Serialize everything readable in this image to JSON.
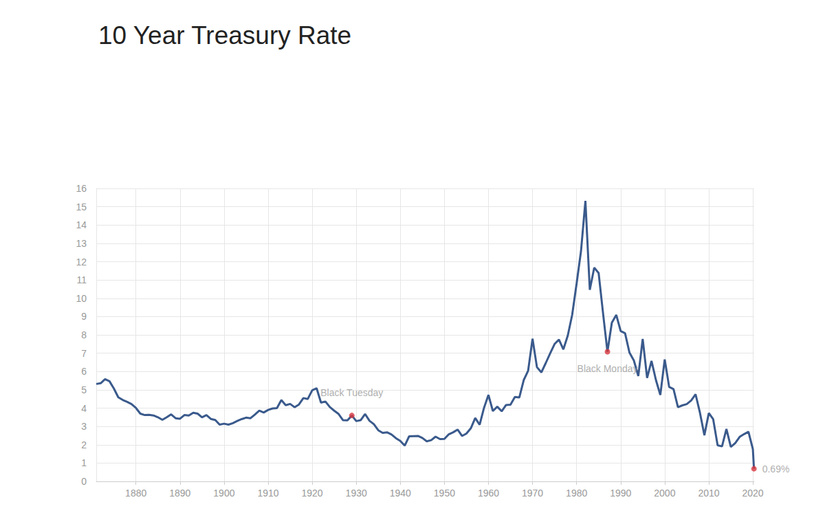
{
  "chart_data": {
    "type": "line",
    "title": "10 Year Treasury Rate",
    "color": "#3a5a8c",
    "grid": true,
    "x": [
      1871,
      1872,
      1873,
      1874,
      1875,
      1876,
      1877,
      1878,
      1879,
      1880,
      1881,
      1882,
      1883,
      1884,
      1885,
      1886,
      1887,
      1888,
      1889,
      1890,
      1891,
      1892,
      1893,
      1894,
      1895,
      1896,
      1897,
      1898,
      1899,
      1900,
      1901,
      1902,
      1903,
      1904,
      1905,
      1906,
      1907,
      1908,
      1909,
      1910,
      1911,
      1912,
      1913,
      1914,
      1915,
      1916,
      1917,
      1918,
      1919,
      1920,
      1921,
      1922,
      1923,
      1924,
      1925,
      1926,
      1927,
      1928,
      1929,
      1930,
      1931,
      1932,
      1933,
      1934,
      1935,
      1936,
      1937,
      1938,
      1939,
      1940,
      1941,
      1942,
      1943,
      1944,
      1945,
      1946,
      1947,
      1948,
      1949,
      1950,
      1951,
      1952,
      1953,
      1954,
      1955,
      1956,
      1957,
      1958,
      1959,
      1960,
      1961,
      1962,
      1963,
      1964,
      1965,
      1966,
      1967,
      1968,
      1969,
      1970,
      1971,
      1972,
      1973,
      1974,
      1975,
      1976,
      1977,
      1978,
      1979,
      1980,
      1981,
      1982,
      1983,
      1984,
      1985,
      1986,
      1987,
      1988,
      1989,
      1990,
      1991,
      1992,
      1993,
      1994,
      1995,
      1996,
      1997,
      1998,
      1999,
      2000,
      2001,
      2002,
      2003,
      2004,
      2005,
      2006,
      2007,
      2008,
      2009,
      2010,
      2011,
      2012,
      2013,
      2014,
      2015,
      2016,
      2017,
      2018,
      2019,
      2020,
      2020.25
    ],
    "values": [
      5.32,
      5.36,
      5.58,
      5.47,
      5.07,
      4.59,
      4.45,
      4.34,
      4.22,
      4.01,
      3.7,
      3.62,
      3.63,
      3.6,
      3.5,
      3.36,
      3.5,
      3.66,
      3.45,
      3.42,
      3.62,
      3.6,
      3.75,
      3.7,
      3.5,
      3.62,
      3.41,
      3.35,
      3.1,
      3.15,
      3.1,
      3.18,
      3.3,
      3.4,
      3.48,
      3.45,
      3.65,
      3.86,
      3.76,
      3.9,
      3.98,
      4.0,
      4.44,
      4.16,
      4.23,
      4.05,
      4.2,
      4.55,
      4.5,
      4.97,
      5.09,
      4.3,
      4.36,
      4.06,
      3.86,
      3.68,
      3.34,
      3.33,
      3.6,
      3.29,
      3.34,
      3.68,
      3.31,
      3.12,
      2.79,
      2.65,
      2.68,
      2.56,
      2.36,
      2.21,
      1.95,
      2.46,
      2.47,
      2.48,
      2.37,
      2.19,
      2.25,
      2.44,
      2.31,
      2.32,
      2.57,
      2.68,
      2.83,
      2.48,
      2.61,
      2.9,
      3.46,
      3.09,
      4.02,
      4.72,
      3.84,
      4.08,
      3.83,
      4.17,
      4.19,
      4.61,
      4.58,
      5.53,
      6.04,
      7.79,
      6.24,
      5.95,
      6.46,
      6.99,
      7.5,
      7.74,
      7.21,
      7.96,
      9.1,
      10.8,
      12.57,
      15.32,
      10.46,
      11.67,
      11.38,
      9.19,
      7.08,
      8.67,
      9.09,
      8.21,
      8.09,
      7.03,
      6.6,
      5.75,
      7.78,
      5.65,
      6.58,
      5.54,
      4.72,
      6.66,
      5.16,
      5.04,
      4.05,
      4.15,
      4.22,
      4.42,
      4.76,
      3.74,
      2.52,
      3.73,
      3.39,
      1.97,
      1.91,
      2.86,
      1.88,
      2.09,
      2.43,
      2.58,
      2.71,
      1.76,
      0.69
    ],
    "xlim": [
      1871,
      2020.3
    ],
    "xticks": [
      1880,
      1890,
      1900,
      1910,
      1920,
      1930,
      1940,
      1950,
      1960,
      1970,
      1980,
      1990,
      2000,
      2010,
      2020
    ],
    "ylim": [
      0,
      16
    ],
    "yticks": [
      0,
      1,
      2,
      3,
      4,
      5,
      6,
      7,
      8,
      9,
      10,
      11,
      12,
      13,
      14,
      15,
      16
    ],
    "annotations": [
      {
        "x": 1929,
        "y": 3.6,
        "text": "Black Tuesday",
        "color": "#d7373f"
      },
      {
        "x": 1987,
        "y": 7.08,
        "text": "Black Monday",
        "color": "#d7373f"
      },
      {
        "x": 2020.25,
        "y": 0.69,
        "text": "0.69%",
        "color": "#d7373f"
      }
    ]
  }
}
